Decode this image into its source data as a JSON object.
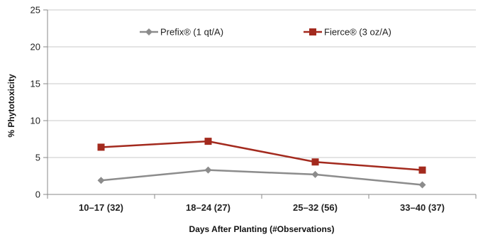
{
  "chart_data": {
    "type": "line",
    "categories": [
      "10–17 (32)",
      "18–24 (27)",
      "25–32 (56)",
      "33–40 (37)"
    ],
    "series": [
      {
        "name": "Prefix® (1 qt/A)",
        "values": [
          1.9,
          3.3,
          2.7,
          1.3
        ],
        "color": "#8c8c8c",
        "marker": "diamond"
      },
      {
        "name": "Fierce® (3 oz/A)",
        "values": [
          6.4,
          7.2,
          4.4,
          3.3
        ],
        "color": "#a32a1e",
        "marker": "square"
      }
    ],
    "yticks": [
      "0",
      "5",
      "10",
      "15",
      "20",
      "25"
    ],
    "xlabel": "Days After Planting (#Observations)",
    "ylabel": "% Phytotoxicity",
    "ylim": [
      0,
      25
    ],
    "grid": "horizontal",
    "legend_position": "top"
  }
}
